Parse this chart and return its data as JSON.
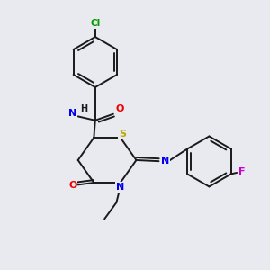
{
  "bg_color": "#e8eaf0",
  "bond_color": "#1a1a1a",
  "bond_width": 1.4,
  "atom_colors": {
    "C": "#1a1a1a",
    "N": "#0000ee",
    "O": "#ee0000",
    "S": "#bbaa00",
    "Cl": "#009900",
    "F": "#cc00cc",
    "H": "#1a1a1a"
  },
  "fontsize": 8.0
}
